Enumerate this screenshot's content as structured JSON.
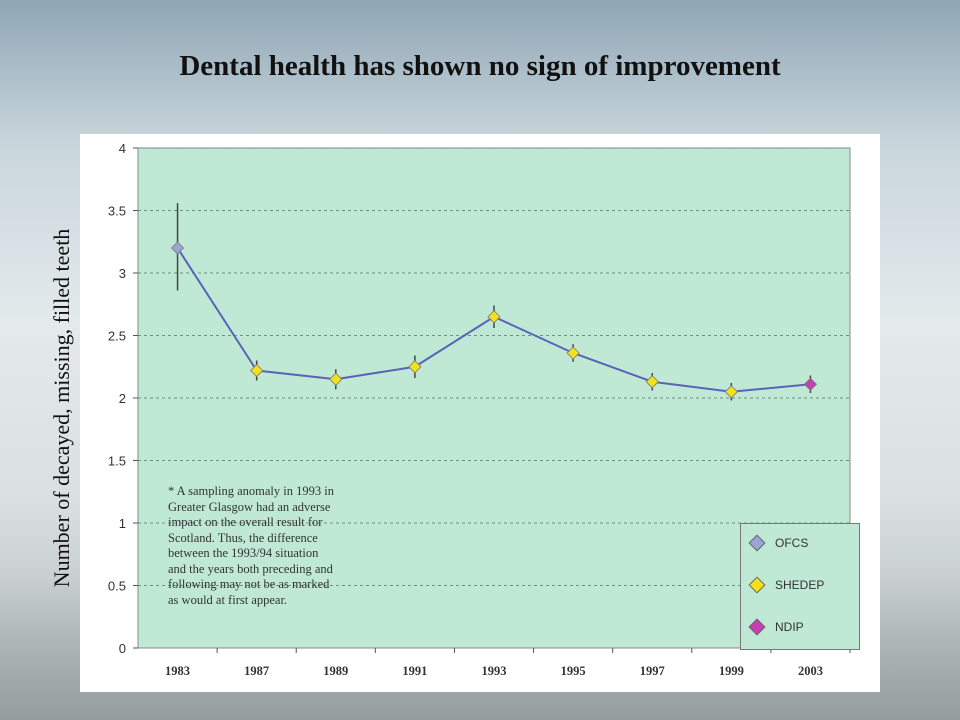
{
  "title": "Dental health has shown no sign of improvement",
  "chart_data": {
    "type": "line",
    "ylabel": "Number of decayed, missing,  filled teeth",
    "xlabel": "",
    "categories": [
      "1983",
      "1987",
      "1989",
      "1991",
      "1993",
      "1995",
      "1997",
      "1999",
      "2003"
    ],
    "ylim": [
      0,
      4
    ],
    "yticks": [
      "0",
      "0.5",
      "1",
      "1.5",
      "2",
      "2.5",
      "3",
      "3.5",
      "4"
    ],
    "grid": true,
    "values": [
      3.2,
      2.22,
      2.15,
      2.25,
      2.65,
      2.36,
      2.13,
      2.05,
      2.11
    ],
    "error_low": [
      2.86,
      2.14,
      2.07,
      2.16,
      2.56,
      2.29,
      2.06,
      1.98,
      2.04
    ],
    "error_high": [
      3.56,
      2.3,
      2.23,
      2.34,
      2.74,
      2.43,
      2.2,
      2.12,
      2.18
    ],
    "point_series": [
      "OFCS",
      "SHEDEP",
      "SHEDEP",
      "SHEDEP",
      "SHEDEP",
      "SHEDEP",
      "SHEDEP",
      "SHEDEP",
      "NDIP"
    ],
    "series": [
      {
        "name": "OFCS",
        "color": "#9aa5d6"
      },
      {
        "name": "SHEDEP",
        "color": "#f2e21e"
      },
      {
        "name": "NDIP",
        "color": "#c83eb3"
      }
    ],
    "line_color": "#5a63b8",
    "plot_bg": "#bfe9d4",
    "legend_position": "bottom-right",
    "annotation": "* A sampling anomaly in 1993 in\nGreater Glasgow had an adverse\nimpact on the overall result for\nScotland. Thus, the difference\nbetween the 1993/94 situation\nand the years both preceding and\nfollowing may not be as marked\nas would at first appear."
  }
}
